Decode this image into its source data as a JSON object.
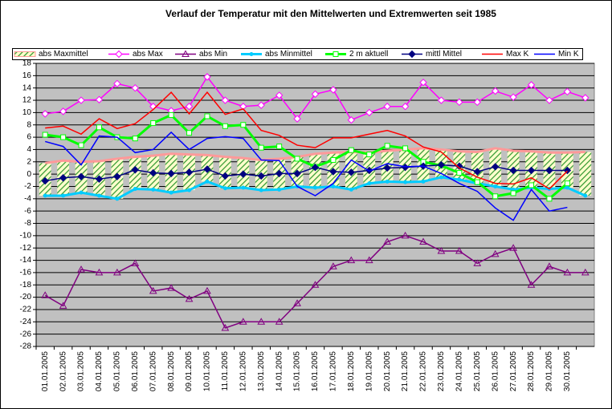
{
  "chart_data": {
    "type": "line",
    "title": "Verlauf der Temperatur mit den Mittelwerten und Extremwerten seit 1985",
    "categories": [
      "01.01.2005",
      "02.01.2005",
      "03.01.2005",
      "04.01.2005",
      "05.01.2005",
      "06.01.2005",
      "07.01.2005",
      "08.01.2005",
      "09.01.2005",
      "10.01.2005",
      "11.01.2005",
      "12.01.2005",
      "13.01.2005",
      "14.01.2005",
      "15.01.2005",
      "16.01.2005",
      "17.01.2005",
      "18.01.2005",
      "19.01.2005",
      "20.01.2005",
      "21.01.2005",
      "22.01.2005",
      "23.01.2005",
      "24.01.2005",
      "25.01.2005",
      "26.01.2005",
      "27.01.2005",
      "28.01.2005",
      "29.01.2005",
      "30.01.2005",
      null
    ],
    "series": [
      {
        "name": "abs Maxmittel",
        "color": "#ff9999",
        "marker": "band",
        "values": [
          1.8,
          2.2,
          2,
          2.1,
          2.5,
          2.8,
          3,
          3.3,
          3.2,
          3.1,
          2.8,
          2.6,
          2.3,
          2.5,
          2.8,
          3.3,
          3.5,
          3.6,
          3.5,
          3.8,
          4,
          4.2,
          4,
          3.7,
          3.6,
          4.2,
          3.8,
          3.7,
          3.5,
          3.5,
          3.6
        ]
      },
      {
        "name": "abs Max",
        "color": "#ff00ff",
        "marker": "diamond-open",
        "values": [
          9.8,
          10.2,
          12,
          12.1,
          14.7,
          14,
          11,
          10.3,
          11,
          15.8,
          12,
          11,
          11.2,
          12.8,
          9,
          13,
          13.7,
          8.8,
          10,
          11,
          11,
          14.9,
          12,
          11.7,
          11.7,
          13.5,
          12.5,
          14.5,
          12,
          13.4,
          12.4
        ]
      },
      {
        "name": "abs Min",
        "color": "#800080",
        "marker": "triangle-open",
        "values": [
          -19.7,
          -21.4,
          -15.5,
          -16,
          -16,
          -14.5,
          -19,
          -18.5,
          -20.3,
          -19,
          -25,
          -24,
          -24,
          -24,
          -21,
          -18,
          -15,
          -14,
          -14,
          -11,
          -10,
          -11,
          -12.5,
          -12.5,
          -14.5,
          -13,
          -12,
          -18,
          -15,
          -16,
          -16
        ]
      },
      {
        "name": "abs Minmittel",
        "color": "#00ccff",
        "marker": "dot",
        "values": [
          -3.5,
          -3.5,
          -3,
          -3.5,
          -4,
          -2.4,
          -2.5,
          -3,
          -2.6,
          -1.2,
          -2.3,
          -2.2,
          -2.6,
          -2.5,
          -2,
          -2.2,
          -2,
          -2.5,
          -1.5,
          -1.2,
          -1.3,
          -1.2,
          -0.5,
          -0.9,
          -1.5,
          -2,
          -2.5,
          -2.2,
          -2.4,
          -2.2,
          -3.5
        ]
      },
      {
        "name": "2 m aktuell",
        "color": "#00ff00",
        "marker": "square-open",
        "values": [
          6.4,
          6,
          4.7,
          7.6,
          6,
          5.8,
          8.3,
          9.6,
          6.7,
          9.4,
          7.8,
          8,
          4.3,
          4.5,
          2.5,
          1.2,
          2.3,
          3.9,
          3.2,
          4.6,
          4.2,
          2,
          1.4,
          0.2,
          -1.3,
          -3.6,
          -3.1,
          -1.8,
          -4,
          -1.5,
          null
        ]
      },
      {
        "name": "mittl Mittel",
        "color": "#000080",
        "marker": "diamond",
        "values": [
          -1.1,
          -0.6,
          -0.4,
          -0.8,
          -0.4,
          0.7,
          0.2,
          0.1,
          0.3,
          0.8,
          -0.3,
          0,
          -0.3,
          0.1,
          0.1,
          1.1,
          0.4,
          0.3,
          0.6,
          1,
          1.1,
          1.3,
          1.5,
          1.3,
          0.4,
          1.2,
          0.6,
          0.6,
          0.6,
          0.6,
          null
        ]
      },
      {
        "name": "Max K",
        "color": "#ff0000",
        "marker": "none",
        "values": [
          7.5,
          7.8,
          6.5,
          9,
          7.4,
          8.2,
          10.5,
          13.3,
          9.8,
          13.3,
          9.7,
          10.6,
          7.1,
          6.3,
          4.7,
          4.3,
          5.9,
          5.9,
          6.5,
          7.1,
          6.2,
          4.4,
          3.6,
          1,
          -0.5,
          -1.5,
          -1.6,
          -0.6,
          -2.4,
          0.5,
          null
        ]
      },
      {
        "name": "Min K",
        "color": "#0000ff",
        "marker": "none",
        "values": [
          5.3,
          4.5,
          1.5,
          6.2,
          6,
          3.5,
          4,
          6.8,
          4,
          5.8,
          6.1,
          5.8,
          2.3,
          2.2,
          -2,
          -3.5,
          -1.5,
          2.3,
          0.5,
          1.7,
          1.2,
          1.3,
          0.1,
          -1.5,
          -2.8,
          -5.5,
          -7.5,
          -2.5,
          -6,
          -5.4,
          null
        ]
      }
    ],
    "ylim": [
      -28,
      18
    ],
    "yticks": [
      -28,
      -26,
      -24,
      -22,
      -20,
      -18,
      -16,
      -14,
      -12,
      -10,
      -8,
      -6,
      -4,
      -2,
      0,
      2,
      4,
      6,
      8,
      10,
      12,
      14,
      16,
      18
    ],
    "grid": true
  }
}
